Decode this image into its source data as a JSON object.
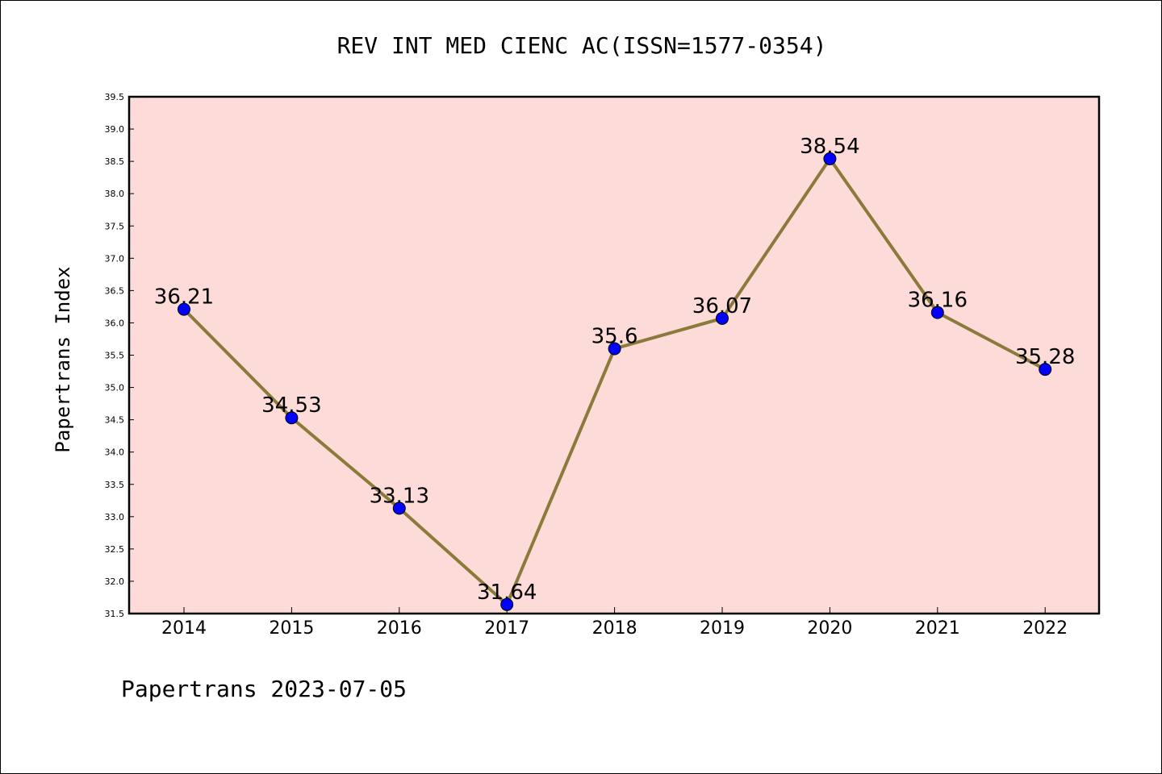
{
  "chart_data": {
    "type": "line",
    "title": "REV INT MED CIENC AC(ISSN=1577-0354)",
    "xlabel": "",
    "ylabel": "Papertrans Index",
    "categories": [
      "2014",
      "2015",
      "2016",
      "2017",
      "2018",
      "2019",
      "2020",
      "2021",
      "2022"
    ],
    "series": [
      {
        "values": [
          36.21,
          34.53,
          33.13,
          31.64,
          35.6,
          36.07,
          38.54,
          36.16,
          35.28
        ],
        "data_labels": [
          "36.21",
          "34.53",
          "33.13",
          "31.64",
          "35.6",
          "36.07",
          "38.54",
          "36.16",
          "35.28"
        ]
      }
    ],
    "ylim": [
      31.5,
      39.5
    ],
    "yticks": [
      "31.5",
      "32.0",
      "32.5",
      "33.0",
      "33.5",
      "34.0",
      "34.5",
      "35.0",
      "35.5",
      "36.0",
      "36.5",
      "37.0",
      "37.5",
      "38.0",
      "38.5",
      "39.0",
      "39.5"
    ],
    "grid": false,
    "colors": {
      "plot_background": "#fddbd8",
      "line": "#8b7a3a",
      "marker": "#0000ff"
    }
  },
  "footer": "Papertrans 2023-07-05"
}
